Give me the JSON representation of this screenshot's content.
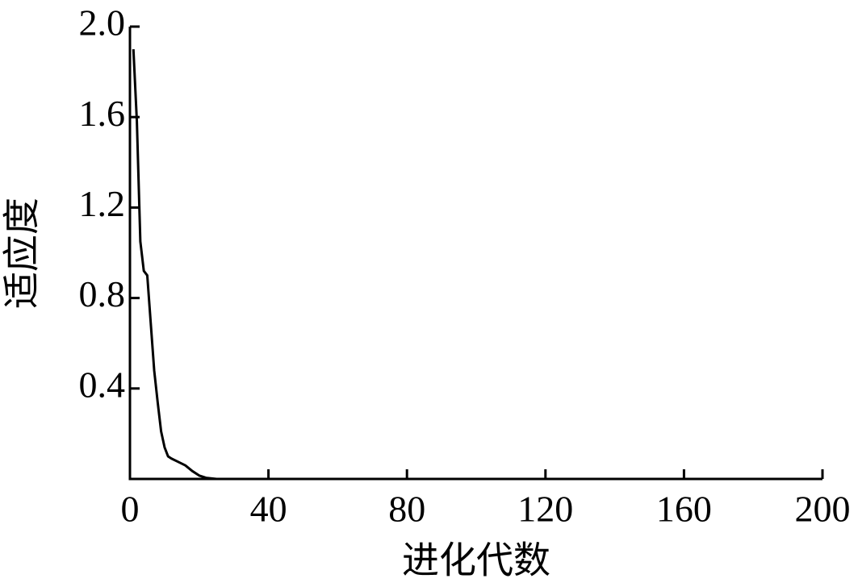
{
  "chart_data": {
    "type": "line",
    "xlabel": "进化代数",
    "ylabel": "适应度",
    "x": [
      1,
      2,
      3,
      4,
      5,
      6,
      7,
      8,
      9,
      10,
      11,
      12,
      14,
      16,
      18,
      20,
      22,
      25,
      40,
      80,
      120,
      160,
      200
    ],
    "series": [
      {
        "color": "#000000",
        "values": [
          1.9,
          1.58,
          1.05,
          0.92,
          0.9,
          0.69,
          0.48,
          0.34,
          0.21,
          0.14,
          0.1,
          0.09,
          0.075,
          0.06,
          0.035,
          0.015,
          0.005,
          0,
          0,
          0,
          0,
          0,
          0
        ]
      }
    ],
    "xlim": [
      0,
      200
    ],
    "xticks": [
      0,
      40,
      80,
      120,
      160,
      200
    ],
    "ylim": [
      0,
      2
    ],
    "yticks": [
      0.4,
      0.8,
      1.2,
      1.6,
      {
        "value": 2,
        "label": "2.0"
      }
    ],
    "grid": false
  }
}
